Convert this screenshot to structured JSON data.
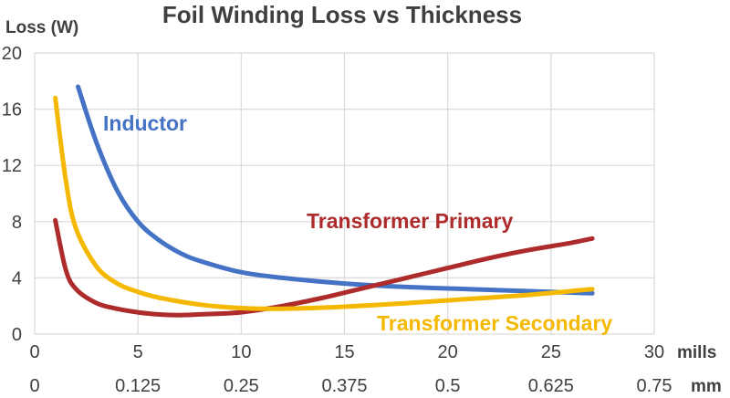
{
  "chart_data": {
    "type": "line",
    "title": "Foil Winding Loss vs Thickness",
    "ylabel": "Loss (W)",
    "ylim": [
      0,
      20
    ],
    "yticks": [
      "0",
      "4",
      "8",
      "12",
      "16",
      "20"
    ],
    "xlim": [
      0,
      30
    ],
    "x_axes": [
      {
        "unit": "mills",
        "ticks": [
          "0",
          "5",
          "10",
          "15",
          "20",
          "25",
          "30"
        ]
      },
      {
        "unit": "mm",
        "ticks": [
          "0",
          "0.125",
          "0.25",
          "0.375",
          "0.5",
          "0.625",
          "0.75"
        ]
      }
    ],
    "grid": true,
    "series": [
      {
        "name": "Inductor",
        "color": "#4472c4",
        "points": [
          [
            2.1,
            17.6
          ],
          [
            3,
            13.6
          ],
          [
            4,
            10.2
          ],
          [
            5,
            8.0
          ],
          [
            6,
            6.7
          ],
          [
            7,
            5.8
          ],
          [
            8,
            5.2
          ],
          [
            10,
            4.4
          ],
          [
            12,
            4.0
          ],
          [
            15,
            3.6
          ],
          [
            18,
            3.35
          ],
          [
            21,
            3.2
          ],
          [
            24,
            3.05
          ],
          [
            27,
            2.9
          ]
        ]
      },
      {
        "name": "Transformer Primary",
        "color": "#ae2b2b",
        "points": [
          [
            1,
            8.1
          ],
          [
            1.5,
            4.6
          ],
          [
            2,
            3.2
          ],
          [
            3,
            2.2
          ],
          [
            4,
            1.8
          ],
          [
            5,
            1.55
          ],
          [
            6,
            1.4
          ],
          [
            7,
            1.35
          ],
          [
            8,
            1.4
          ],
          [
            10,
            1.55
          ],
          [
            12,
            2.0
          ],
          [
            14,
            2.6
          ],
          [
            16,
            3.3
          ],
          [
            18,
            4.0
          ],
          [
            20,
            4.7
          ],
          [
            22,
            5.4
          ],
          [
            24,
            6.0
          ],
          [
            26,
            6.5
          ],
          [
            27,
            6.8
          ]
        ]
      },
      {
        "name": "Transformer Secondary",
        "color": "#f5b800",
        "points": [
          [
            1,
            16.8
          ],
          [
            1.5,
            11.0
          ],
          [
            2,
            7.5
          ],
          [
            3,
            4.8
          ],
          [
            4,
            3.6
          ],
          [
            5,
            3.0
          ],
          [
            6,
            2.6
          ],
          [
            8,
            2.1
          ],
          [
            10,
            1.85
          ],
          [
            12,
            1.8
          ],
          [
            15,
            1.95
          ],
          [
            18,
            2.2
          ],
          [
            21,
            2.5
          ],
          [
            24,
            2.8
          ],
          [
            27,
            3.2
          ]
        ]
      }
    ]
  }
}
